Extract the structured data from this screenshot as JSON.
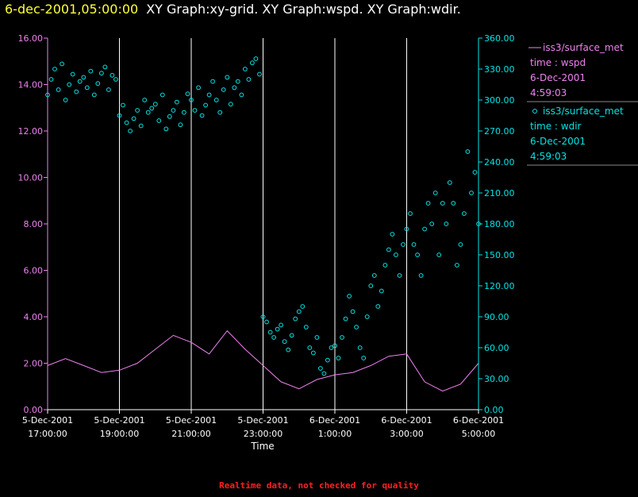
{
  "header": {
    "time": "6-dec-2001,05:00:00",
    "graph_titles": "XY Graph:xy-grid.  XY Graph:wspd.  XY Graph:wdir."
  },
  "footer": {
    "note": "Realtime data, not checked for quality"
  },
  "colors": {
    "background": "#000000",
    "left_axis": "#ee82ee",
    "right_axis": "#00e5e5",
    "grid": "#ffffff",
    "header_time": "#ffff3c",
    "footer_note": "#ff2020"
  },
  "chart_data": {
    "type": "line",
    "xlabel": "Time",
    "x_ticks": [
      {
        "line1": "5-Dec-2001",
        "line2": "17:00:00"
      },
      {
        "line1": "5-Dec-2001",
        "line2": "19:00:00"
      },
      {
        "line1": "5-Dec-2001",
        "line2": "21:00:00"
      },
      {
        "line1": "5-Dec-2001",
        "line2": "23:00:00"
      },
      {
        "line1": "6-Dec-2001",
        "line2": "1:00:00"
      },
      {
        "line1": "6-Dec-2001",
        "line2": "3:00:00"
      },
      {
        "line1": "6-Dec-2001",
        "line2": "5:00:00"
      }
    ],
    "x_range_hours": [
      0,
      12
    ],
    "y_left": {
      "range": [
        0,
        16
      ],
      "tick_labels": [
        "0.00",
        "2.00",
        "4.00",
        "6.00",
        "8.00",
        "10.00",
        "12.00",
        "14.00",
        "16.00"
      ]
    },
    "y_right": {
      "range": [
        0,
        360
      ],
      "tick_labels": [
        "0.00",
        "30.00",
        "60.00",
        "90.00",
        "120.00",
        "150.00",
        "180.00",
        "210.00",
        "240.00",
        "270.00",
        "300.00",
        "330.00",
        "360.00"
      ]
    },
    "grid": {
      "vertical": true,
      "horizontal": false
    },
    "legend_placement": "right",
    "legend": [
      {
        "label": "iss3/surface_met",
        "line2": "time : wspd",
        "line3": "6-Dec-2001",
        "line4": "4:59:03",
        "marker": "line",
        "color": "#ee82ee"
      },
      {
        "label": "iss3/surface_met",
        "line2": "time : wdir",
        "line3": "6-Dec-2001",
        "line4": "4:59:03",
        "marker": "circle",
        "color": "#00e5e5"
      }
    ],
    "series": [
      {
        "id": "wspd",
        "type": "line",
        "axis": "left",
        "color": "#ee82ee",
        "x": [
          0.0,
          0.5,
          1.0,
          1.5,
          2.0,
          2.5,
          3.0,
          3.5,
          4.0,
          4.5,
          5.0,
          5.5,
          6.0,
          6.5,
          7.0,
          7.5,
          8.0,
          8.5,
          9.0,
          9.5,
          10.0,
          10.5,
          11.0,
          11.5,
          12.0
        ],
        "y": [
          1.9,
          2.2,
          1.9,
          1.6,
          1.7,
          2.0,
          2.6,
          3.2,
          2.9,
          2.4,
          3.4,
          2.6,
          1.9,
          1.2,
          0.9,
          1.3,
          1.5,
          1.6,
          1.9,
          2.3,
          2.4,
          1.2,
          0.8,
          1.1,
          2.0
        ]
      },
      {
        "id": "wdir",
        "type": "scatter",
        "axis": "right",
        "color": "#00e5e5",
        "x": [
          0.0,
          0.1,
          0.2,
          0.3,
          0.4,
          0.5,
          0.6,
          0.7,
          0.8,
          0.9,
          1.0,
          1.1,
          1.2,
          1.3,
          1.4,
          1.5,
          1.6,
          1.7,
          1.8,
          1.9,
          2.0,
          2.1,
          2.2,
          2.3,
          2.4,
          2.5,
          2.6,
          2.7,
          2.8,
          2.9,
          3.0,
          3.1,
          3.2,
          3.3,
          3.4,
          3.5,
          3.6,
          3.7,
          3.8,
          3.9,
          4.0,
          4.1,
          4.2,
          4.3,
          4.4,
          4.5,
          4.6,
          4.7,
          4.8,
          4.9,
          5.0,
          5.1,
          5.2,
          5.3,
          5.4,
          5.5,
          5.6,
          5.7,
          5.8,
          5.9,
          6.0,
          6.1,
          6.2,
          6.3,
          6.4,
          6.5,
          6.6,
          6.7,
          6.8,
          6.9,
          7.0,
          7.1,
          7.2,
          7.3,
          7.4,
          7.5,
          7.6,
          7.7,
          7.8,
          7.9,
          8.0,
          8.1,
          8.2,
          8.3,
          8.4,
          8.5,
          8.6,
          8.7,
          8.8,
          8.9,
          9.0,
          9.1,
          9.2,
          9.3,
          9.4,
          9.5,
          9.6,
          9.7,
          9.8,
          9.9,
          10.0,
          10.1,
          10.2,
          10.3,
          10.4,
          10.5,
          10.6,
          10.7,
          10.8,
          10.9,
          11.0,
          11.1,
          11.2,
          11.3,
          11.4,
          11.5,
          11.6,
          11.7,
          11.8,
          11.9,
          12.0
        ],
        "y": [
          305,
          320,
          330,
          310,
          335,
          300,
          315,
          325,
          308,
          318,
          322,
          312,
          328,
          305,
          316,
          326,
          332,
          310,
          324,
          320,
          285,
          295,
          278,
          270,
          282,
          290,
          275,
          300,
          288,
          292,
          296,
          280,
          305,
          272,
          284,
          290,
          298,
          276,
          288,
          306,
          300,
          290,
          312,
          285,
          295,
          305,
          318,
          300,
          288,
          310,
          322,
          296,
          312,
          318,
          305,
          330,
          320,
          336,
          340,
          325,
          90,
          85,
          75,
          70,
          78,
          82,
          66,
          58,
          72,
          88,
          95,
          100,
          80,
          60,
          55,
          70,
          40,
          35,
          48,
          60,
          62,
          50,
          70,
          88,
          110,
          95,
          80,
          60,
          50,
          90,
          120,
          130,
          100,
          115,
          140,
          155,
          170,
          150,
          130,
          160,
          175,
          190,
          160,
          150,
          130,
          175,
          200,
          180,
          210,
          150,
          200,
          180,
          220,
          200,
          140,
          160,
          190,
          250,
          210,
          230,
          180
        ]
      }
    ]
  }
}
